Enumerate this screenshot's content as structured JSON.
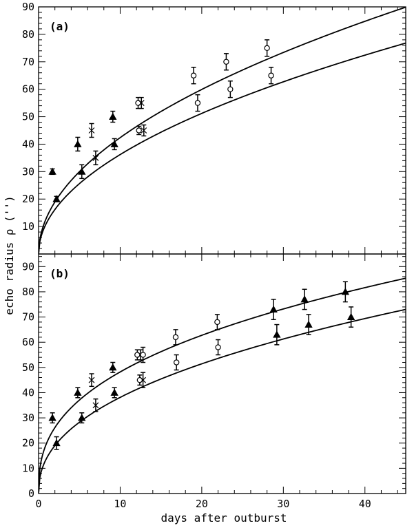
{
  "chart_data": {
    "type": "scatter",
    "shared_xlabel": "days after outburst",
    "shared_ylabel": "echo radius ρ ('')",
    "xlim": [
      0,
      45
    ],
    "x_ticks": [
      0,
      10,
      20,
      30,
      40
    ],
    "panels": [
      {
        "label": "(a)",
        "ylim": [
          0,
          90
        ],
        "y_ticks": [
          10,
          20,
          30,
          40,
          50,
          60,
          70,
          80,
          90
        ],
        "curves": [
          {
            "coef": 13.4,
            "power": 0.5
          },
          {
            "coef": 11.45,
            "power": 0.5
          }
        ],
        "points": [
          {
            "x": 1.7,
            "y": 30,
            "err": 1,
            "marker": "triangle"
          },
          {
            "x": 4.8,
            "y": 40,
            "err": 2.5,
            "marker": "triangle"
          },
          {
            "x": 6.5,
            "y": 45,
            "err": 2.5,
            "marker": "cross"
          },
          {
            "x": 9.1,
            "y": 50,
            "err": 2,
            "marker": "triangle"
          },
          {
            "x": 12.2,
            "y": 55,
            "err": 2,
            "marker": "circle"
          },
          {
            "x": 12.6,
            "y": 55,
            "err": 2,
            "marker": "cross"
          },
          {
            "x": 19.0,
            "y": 65,
            "err": 3,
            "marker": "circle"
          },
          {
            "x": 23.0,
            "y": 70,
            "err": 3,
            "marker": "circle"
          },
          {
            "x": 28.0,
            "y": 75,
            "err": 3,
            "marker": "circle"
          },
          {
            "x": 2.2,
            "y": 20,
            "err": 1,
            "marker": "triangle"
          },
          {
            "x": 5.3,
            "y": 30,
            "err": 2.5,
            "marker": "triangle"
          },
          {
            "x": 7.0,
            "y": 35,
            "err": 2.5,
            "marker": "cross"
          },
          {
            "x": 9.3,
            "y": 40,
            "err": 2,
            "marker": "triangle"
          },
          {
            "x": 12.3,
            "y": 45,
            "err": 1.5,
            "marker": "circle"
          },
          {
            "x": 12.9,
            "y": 45,
            "err": 2,
            "marker": "cross"
          },
          {
            "x": 19.5,
            "y": 55,
            "err": 3,
            "marker": "circle"
          },
          {
            "x": 23.5,
            "y": 60,
            "err": 3,
            "marker": "circle"
          },
          {
            "x": 28.5,
            "y": 65,
            "err": 3,
            "marker": "circle"
          }
        ]
      },
      {
        "label": "(b)",
        "ylim": [
          0,
          95
        ],
        "y_ticks": [
          0,
          10,
          20,
          30,
          40,
          50,
          60,
          70,
          80,
          90
        ],
        "curves": [
          {
            "coef": 20.1,
            "power": 0.38
          },
          {
            "coef": 14.1,
            "power": 0.432
          }
        ],
        "points": [
          {
            "x": 1.7,
            "y": 30,
            "err": 2,
            "marker": "triangle"
          },
          {
            "x": 4.8,
            "y": 40,
            "err": 2,
            "marker": "triangle"
          },
          {
            "x": 6.5,
            "y": 45,
            "err": 2.5,
            "marker": "cross"
          },
          {
            "x": 9.1,
            "y": 50,
            "err": 2,
            "marker": "triangle"
          },
          {
            "x": 12.1,
            "y": 55,
            "err": 2,
            "marker": "circle"
          },
          {
            "x": 12.5,
            "y": 55,
            "err": 2,
            "marker": "cross"
          },
          {
            "x": 12.8,
            "y": 55,
            "err": 3,
            "marker": "circle"
          },
          {
            "x": 16.8,
            "y": 62,
            "err": 3,
            "marker": "circle"
          },
          {
            "x": 21.9,
            "y": 68,
            "err": 3,
            "marker": "circle"
          },
          {
            "x": 28.8,
            "y": 73,
            "err": 4,
            "marker": "triangle"
          },
          {
            "x": 32.6,
            "y": 77,
            "err": 4,
            "marker": "triangle"
          },
          {
            "x": 37.6,
            "y": 80,
            "err": 4,
            "marker": "triangle"
          },
          {
            "x": 2.2,
            "y": 20,
            "err": 2.5,
            "marker": "triangle"
          },
          {
            "x": 5.3,
            "y": 30,
            "err": 2,
            "marker": "triangle"
          },
          {
            "x": 7.0,
            "y": 35,
            "err": 2.5,
            "marker": "cross"
          },
          {
            "x": 9.3,
            "y": 40,
            "err": 2,
            "marker": "triangle"
          },
          {
            "x": 12.4,
            "y": 45,
            "err": 2,
            "marker": "circle"
          },
          {
            "x": 12.8,
            "y": 45,
            "err": 3,
            "marker": "cross"
          },
          {
            "x": 16.9,
            "y": 52,
            "err": 3,
            "marker": "circle"
          },
          {
            "x": 22.0,
            "y": 58,
            "err": 3,
            "marker": "circle"
          },
          {
            "x": 29.2,
            "y": 63,
            "err": 4,
            "marker": "triangle"
          },
          {
            "x": 33.1,
            "y": 67,
            "err": 4,
            "marker": "triangle"
          },
          {
            "x": 38.3,
            "y": 70,
            "err": 4,
            "marker": "triangle"
          }
        ]
      }
    ]
  }
}
